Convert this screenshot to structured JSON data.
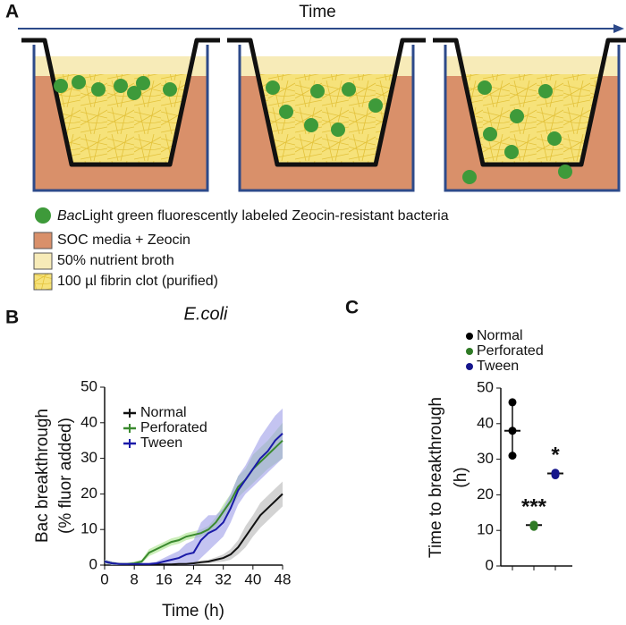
{
  "panel_a": {
    "label": "A",
    "arrow_label": "Time",
    "legend": [
      {
        "prefix": "Bac",
        "text": "Light green fluorescently labeled Zeocin-resistant bacteria"
      },
      {
        "text": "SOC media + Zeocin"
      },
      {
        "text": "50% nutrient broth"
      },
      {
        "text": "100 µl fibrin clot (purified)"
      }
    ]
  },
  "chart_data": [
    {
      "type": "line",
      "panel": "B",
      "title": "E.coli",
      "ylabel": [
        "Bac breakthrough",
        "(% fluor added)"
      ],
      "xlabel": "Time (h)",
      "x": [
        0,
        2,
        4,
        6,
        8,
        10,
        12,
        14,
        16,
        18,
        20,
        22,
        24,
        26,
        28,
        30,
        32,
        34,
        36,
        38,
        40,
        42,
        44,
        46,
        48
      ],
      "xlim": [
        0,
        48
      ],
      "xticks": [
        0,
        8,
        16,
        24,
        32,
        40,
        48
      ],
      "ylim": [
        0,
        50
      ],
      "yticks": [
        0,
        10,
        20,
        30,
        40,
        50
      ],
      "legend": "upper left",
      "series": [
        {
          "name": "Normal",
          "color": "#111111",
          "band_color": "#b5b5b5",
          "values": [
            1,
            0.5,
            0.3,
            0.2,
            0.2,
            0.2,
            0.2,
            0.2,
            0.2,
            0.2,
            0.3,
            0.3,
            0.5,
            0.8,
            1,
            1.5,
            2,
            3,
            5,
            8,
            11,
            14,
            16,
            18,
            20
          ],
          "lower": [
            0.5,
            0,
            0,
            0,
            0,
            0,
            0,
            0,
            0,
            0,
            0,
            0,
            0,
            0.3,
            0.5,
            0.8,
            1,
            1.5,
            3,
            5,
            8,
            10.5,
            12.5,
            14.5,
            16.5
          ],
          "upper": [
            1.5,
            1,
            0.6,
            0.4,
            0.4,
            0.4,
            0.4,
            0.4,
            0.4,
            0.4,
            0.6,
            0.6,
            1,
            1.3,
            1.5,
            2.2,
            3,
            4.5,
            7,
            11,
            14,
            17.5,
            19.5,
            21.5,
            23.5
          ]
        },
        {
          "name": "Perforated",
          "color": "#3a8a2e",
          "band_color": "#a8e28a",
          "values": [
            1,
            0.5,
            0.3,
            0.3,
            0.5,
            1,
            3.5,
            4.5,
            5.5,
            6.5,
            7,
            8,
            8.5,
            9,
            10,
            12,
            15,
            18,
            22,
            24,
            27,
            29,
            31,
            33,
            35
          ],
          "lower": [
            0.5,
            0,
            0,
            0,
            0,
            0.5,
            2.5,
            3.5,
            4.5,
            5.5,
            6,
            7,
            7.5,
            8,
            9,
            10.5,
            13,
            16,
            19,
            21,
            23,
            25,
            27,
            28.5,
            30
          ],
          "upper": [
            1.5,
            1,
            0.6,
            0.6,
            1,
            1.5,
            4.5,
            5.5,
            6.5,
            7.5,
            8,
            9,
            9.5,
            10,
            11,
            13.5,
            17,
            20,
            25,
            27,
            31,
            33,
            35,
            37.5,
            40
          ]
        },
        {
          "name": "Tween",
          "color": "#1a1aa8",
          "band_color": "#9d9de8",
          "values": [
            1,
            0.5,
            0.3,
            0.3,
            0.3,
            0.3,
            0.3,
            0.5,
            1,
            1.5,
            2,
            3,
            3.5,
            7,
            9,
            10,
            12,
            16,
            21,
            24,
            27,
            30,
            32,
            35,
            37
          ],
          "lower": [
            0.5,
            0,
            0,
            0,
            0,
            0,
            0,
            0,
            0,
            0,
            0,
            0,
            0,
            2,
            4,
            6,
            8,
            12,
            17,
            20,
            22,
            24,
            26,
            28,
            30
          ],
          "upper": [
            1.5,
            1,
            0.6,
            0.6,
            0.6,
            0.6,
            0.6,
            1,
            2,
            3,
            4,
            6,
            7,
            12,
            14,
            14,
            16,
            20,
            25,
            28,
            32,
            36,
            39,
            42,
            44
          ]
        }
      ]
    },
    {
      "type": "strip",
      "panel": "C",
      "ylabel": [
        "Time to breakthrough",
        "(h)"
      ],
      "ylim": [
        0,
        50
      ],
      "yticks": [
        0,
        10,
        20,
        30,
        40,
        50
      ],
      "legend": "upper left",
      "series": [
        {
          "name": "Normal",
          "color": "#000000",
          "values": [
            46,
            38,
            31
          ],
          "mean": 38,
          "sd": 7.5
        },
        {
          "name": "Perforated",
          "color": "#2f7a25",
          "values": [
            11,
            11.3,
            11.6
          ],
          "mean": 11.5,
          "sd": 0.3,
          "annotation": "***"
        },
        {
          "name": "Tween",
          "color": "#15158c",
          "values": [
            25.5,
            26,
            26.2
          ],
          "mean": 26,
          "sd": 0.4,
          "annotation": "*"
        }
      ]
    }
  ]
}
